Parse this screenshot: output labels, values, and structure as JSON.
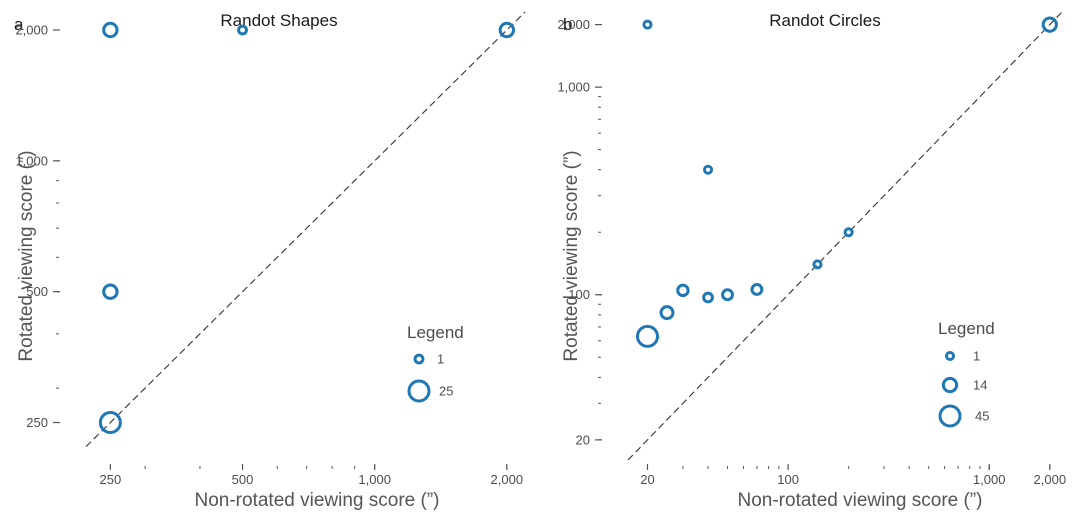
{
  "colors": {
    "marker": "#1f77b4",
    "diagonal": "#333333",
    "ticks": "#555555",
    "text": "#4d4d4d"
  },
  "chart_data": [
    {
      "type": "scatter",
      "panel_label": "a",
      "title": "Randot Shapes",
      "xlabel": "Non-rotated viewing score  (”)",
      "ylabel": "Rotated viewing score  (”)",
      "scale": "log",
      "xlim": [
        220,
        2200
      ],
      "ylim": [
        205,
        2200
      ],
      "x_tick_values": [
        250,
        500,
        1000,
        2000
      ],
      "x_tick_labels": [
        "250",
        "500",
        "1,000",
        "2,000"
      ],
      "y_tick_values": [
        250,
        500,
        1000,
        2000
      ],
      "y_tick_labels": [
        "250",
        "500",
        "1,000",
        "2,000"
      ],
      "diagonal": "y = x",
      "legend_title": "Legend",
      "legend_entries": [
        {
          "label": "1",
          "count": 1
        },
        {
          "label": "25",
          "count": 25
        }
      ],
      "points": [
        {
          "x": 250,
          "y": 2000,
          "count": 8
        },
        {
          "x": 500,
          "y": 2000,
          "count": 1
        },
        {
          "x": 2000,
          "y": 2000,
          "count": 8
        },
        {
          "x": 250,
          "y": 500,
          "count": 8
        },
        {
          "x": 250,
          "y": 250,
          "count": 25
        }
      ]
    },
    {
      "type": "scatter",
      "panel_label": "b",
      "title": "Randot Circles",
      "xlabel": "Non-rotated viewing score  (”)",
      "ylabel": "Rotated viewing score  (”)",
      "scale": "log",
      "xlim": [
        16,
        2300
      ],
      "ylim": [
        16,
        2300
      ],
      "x_tick_values": [
        20,
        100,
        1000,
        2000
      ],
      "x_tick_labels": [
        "20",
        "100",
        "1,000",
        "2,000"
      ],
      "y_tick_values": [
        20,
        100,
        1000,
        2000
      ],
      "y_tick_labels": [
        "20",
        "100",
        "1,000",
        "2,000"
      ],
      "diagonal": "y = x",
      "legend_title": "Legend",
      "legend_entries": [
        {
          "label": "1",
          "count": 1
        },
        {
          "label": "14",
          "count": 14
        },
        {
          "label": "45",
          "count": 45
        }
      ],
      "points": [
        {
          "x": 20,
          "y": 2000,
          "count": 1
        },
        {
          "x": 2000,
          "y": 2000,
          "count": 14
        },
        {
          "x": 40,
          "y": 400,
          "count": 1
        },
        {
          "x": 200,
          "y": 200,
          "count": 1
        },
        {
          "x": 140,
          "y": 140,
          "count": 1
        },
        {
          "x": 30,
          "y": 105,
          "count": 6
        },
        {
          "x": 40,
          "y": 97,
          "count": 3
        },
        {
          "x": 50,
          "y": 100,
          "count": 5
        },
        {
          "x": 70,
          "y": 106,
          "count": 5
        },
        {
          "x": 25,
          "y": 82,
          "count": 10
        },
        {
          "x": 20,
          "y": 63,
          "count": 45
        }
      ]
    }
  ]
}
